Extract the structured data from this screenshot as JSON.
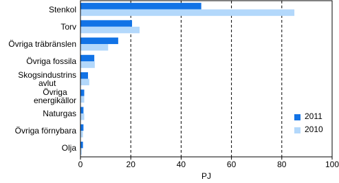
{
  "chart_data": {
    "type": "hbar",
    "categories": [
      "Stenkol",
      "Torv",
      "Övriga träbränslen",
      "Övriga fossila",
      "Skogsindustrins\navlut",
      "Övriga\nenergikällor",
      "Naturgas",
      "Övriga förnybara",
      "Olja"
    ],
    "series": [
      {
        "name": "2011",
        "color": "#1273e6",
        "values": [
          48,
          20.5,
          15,
          5.5,
          3,
          1.5,
          1.2,
          1.2,
          1
        ]
      },
      {
        "name": "2010",
        "color": "#b3d8fb",
        "values": [
          85,
          23.5,
          11,
          5.7,
          3.5,
          1.5,
          1.5,
          1,
          0.5
        ]
      }
    ],
    "xlabel": "PJ",
    "xlim": [
      0,
      100
    ],
    "xticks": [
      0,
      20,
      40,
      60,
      80,
      100
    ],
    "grid": true,
    "legend": "lower right"
  }
}
